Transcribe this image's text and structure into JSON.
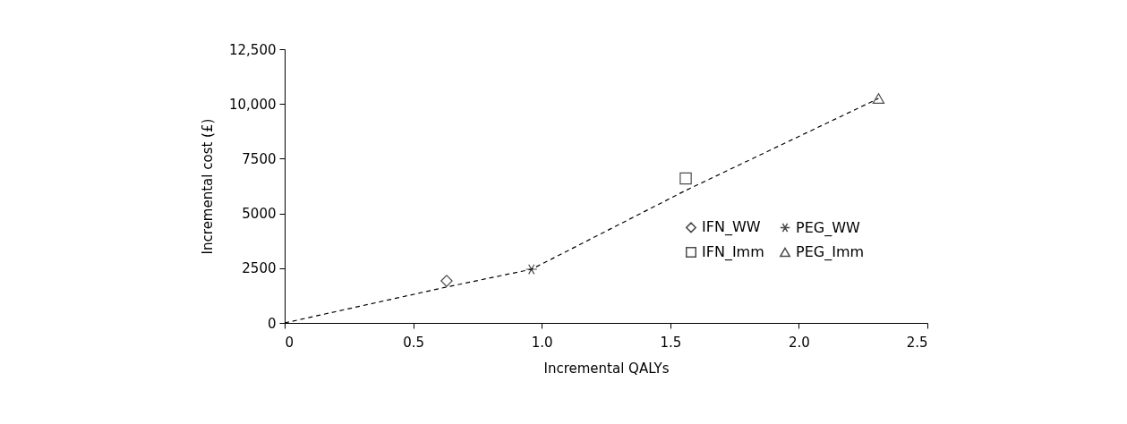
{
  "chart_data": {
    "type": "scatter",
    "xlabel": "Incremental QALYs",
    "ylabel": "Incremental cost (£)",
    "xlim": [
      0,
      2.5
    ],
    "xticks": [
      0,
      0.5,
      {
        "value": 1,
        "label": "1.0"
      },
      1.5,
      {
        "value": 2,
        "label": "2.0"
      },
      2.5
    ],
    "ylim": [
      0,
      12500
    ],
    "yticks": [
      0,
      2500,
      5000,
      7500,
      {
        "value": 10000,
        "label": "10,000"
      },
      {
        "value": 12500,
        "label": "12,500"
      }
    ],
    "grid": false,
    "legend": "bottom right",
    "series": [
      {
        "name": "IFN_WW",
        "color": "#000000",
        "marker": "diamond",
        "x": [
          0.63
        ],
        "values": [
          1920
        ]
      },
      {
        "name": "PEG_WW",
        "color": "#000000",
        "marker": "cross",
        "x": [
          0.96
        ],
        "values": [
          2450
        ]
      },
      {
        "name": "IFN_Imm",
        "color": "#000000",
        "marker": "square",
        "x": [
          1.56
        ],
        "values": [
          6600
        ]
      },
      {
        "name": "PEG_Imm",
        "color": "#000000",
        "marker": "triangle",
        "x": [
          2.31
        ],
        "values": [
          10250
        ]
      },
      {
        "type": "line",
        "color": "#000000",
        "line_style": "dashed",
        "x": [
          0,
          0.63,
          0.96,
          1.56,
          2.31
        ],
        "values": [
          0,
          1640,
          2450,
          6050,
          10250
        ]
      }
    ]
  }
}
